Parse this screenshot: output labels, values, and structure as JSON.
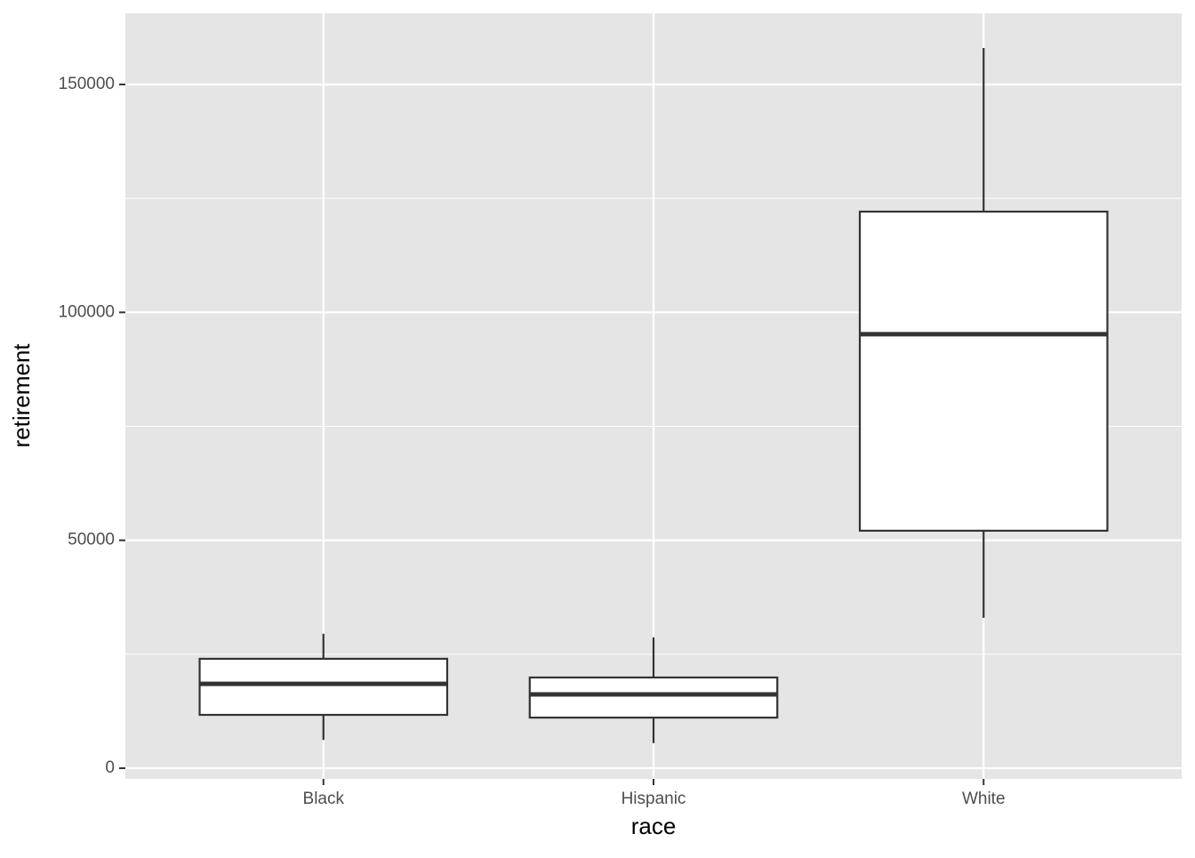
{
  "chart_data": {
    "type": "box",
    "x_label": "race",
    "y_label": "retirement",
    "categories": [
      "Black",
      "Hispanic",
      "White"
    ],
    "min": [
      6200,
      5500,
      33000
    ],
    "q1": [
      11700,
      11100,
      52100
    ],
    "median": [
      18500,
      16200,
      95200
    ],
    "q3": [
      24000,
      19900,
      122100
    ],
    "max": [
      29500,
      28700,
      158000
    ],
    "ylim": [
      -2340,
      165600
    ],
    "yticks": [
      0,
      50000,
      100000,
      150000
    ],
    "minor_yticks": [
      25000,
      75000,
      125000
    ],
    "grid": true,
    "box_fill": "#ffffff",
    "line_color": "#333333",
    "panel_color": "#e5e5e5"
  }
}
